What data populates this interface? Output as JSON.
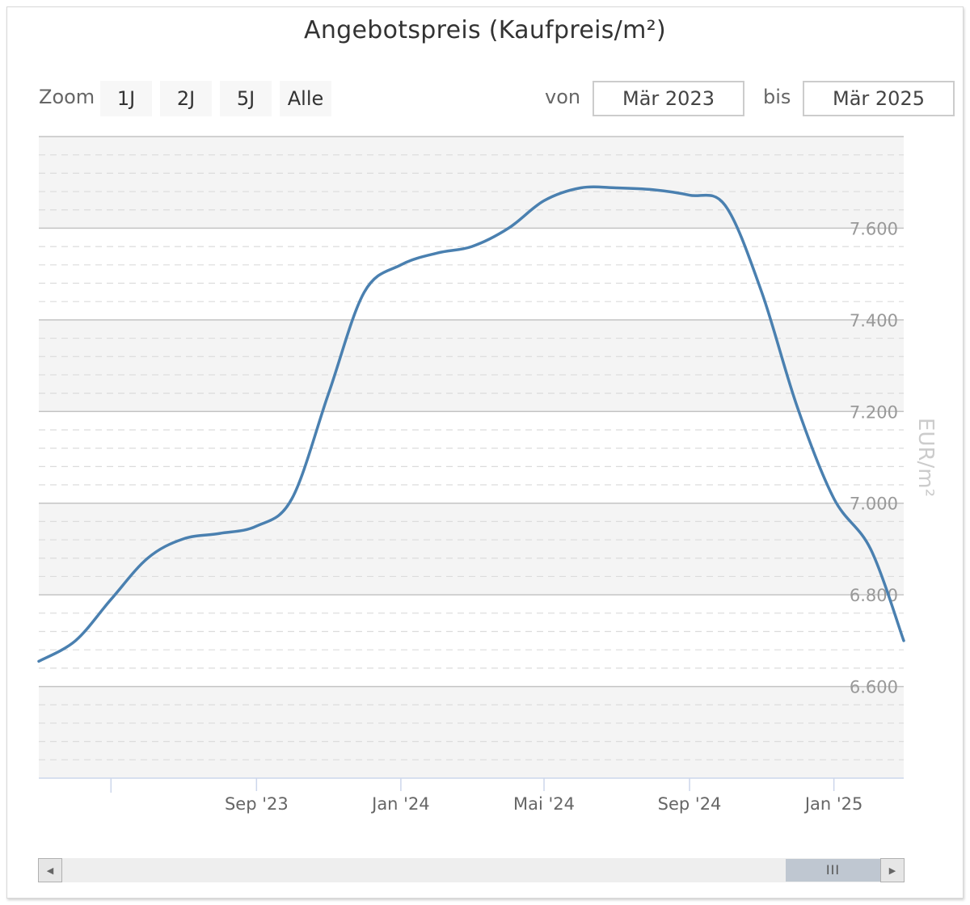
{
  "header": {
    "title": "Angebotspreis (Kaufpreis/m²)"
  },
  "zoom": {
    "label": "Zoom",
    "buttons": [
      "1J",
      "2J",
      "5J",
      "Alle"
    ]
  },
  "range": {
    "from_label": "von",
    "from_value": "Mär 2023",
    "to_label": "bis",
    "to_value": "Mär 2025"
  },
  "scrollbar": {
    "left_arrow": "◀",
    "right_arrow": "▶",
    "thumb_grip": "III"
  },
  "colors": {
    "line": "#4a80b0",
    "band": "#f4f4f4",
    "grid_major": "#c4c4c4",
    "grid_minor": "#dcdcdc",
    "axis": "#ccd6eb"
  },
  "chart_data": {
    "type": "line",
    "title": "Angebotspreis (Kaufpreis/m²)",
    "ylabel": "EUR/m²",
    "xlabel": "",
    "ylim": [
      6400,
      7800
    ],
    "yticks": [
      6600,
      6800,
      7000,
      7200,
      7400,
      7600
    ],
    "ytick_labels": [
      "6.600",
      "6.800",
      "7.000",
      "7.200",
      "7.400",
      "7.600"
    ],
    "xlim": [
      "2023-03-01",
      "2025-03-01"
    ],
    "xticks": [
      {
        "date": "2023-05-01",
        "label": ""
      },
      {
        "date": "2023-09-01",
        "label": "Sep '23"
      },
      {
        "date": "2024-01-01",
        "label": "Jan '24"
      },
      {
        "date": "2024-05-01",
        "label": "Mai '24"
      },
      {
        "date": "2024-09-01",
        "label": "Sep '24"
      },
      {
        "date": "2025-01-01",
        "label": "Jan '25"
      }
    ],
    "grid": true,
    "series": [
      {
        "x": [
          "2023-03-01",
          "2023-04-01",
          "2023-05-01",
          "2023-06-01",
          "2023-07-01",
          "2023-08-01",
          "2023-09-01",
          "2023-10-01",
          "2023-11-01",
          "2023-12-01",
          "2024-01-01",
          "2024-02-01",
          "2024-03-01",
          "2024-04-01",
          "2024-05-01",
          "2024-06-01",
          "2024-07-01",
          "2024-08-01",
          "2024-09-01",
          "2024-10-01",
          "2024-11-01",
          "2024-12-01",
          "2025-01-01",
          "2025-02-01",
          "2025-03-01"
        ],
        "y": [
          6655,
          6700,
          6790,
          6880,
          6922,
          6934,
          6950,
          7010,
          7240,
          7460,
          7520,
          7546,
          7560,
          7600,
          7660,
          7688,
          7688,
          7684,
          7672,
          7650,
          7460,
          7210,
          7010,
          6900,
          6700
        ]
      }
    ]
  }
}
